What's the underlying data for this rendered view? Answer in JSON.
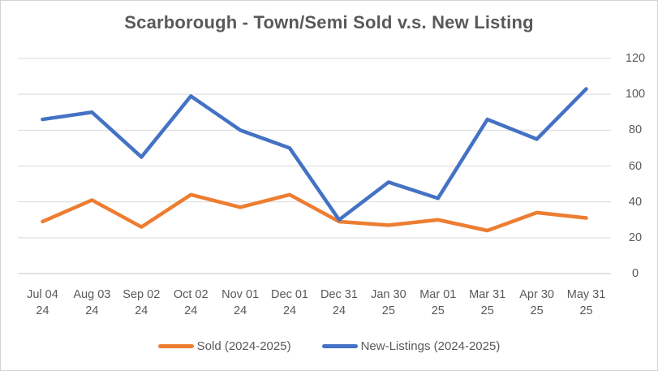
{
  "chart_data": {
    "type": "line",
    "title": "Scarborough - Town/Semi Sold v.s. New Listing",
    "xlabel": "",
    "ylabel": "",
    "categories": [
      "Jul 04 24",
      "Aug 03 24",
      "Sep 02 24",
      "Oct 02 24",
      "Nov 01 24",
      "Dec 01 24",
      "Dec 31 24",
      "Jan 30 25",
      "Mar 01 25",
      "Mar 31 25",
      "Apr 30 25",
      "May 31 25"
    ],
    "series": [
      {
        "name": "Sold (2024-2025)",
        "color": "#ED7D31",
        "values": [
          29,
          41,
          26,
          44,
          37,
          44,
          29,
          27,
          30,
          24,
          34,
          31
        ]
      },
      {
        "name": "New-Listings (2024-2025)",
        "color": "#4472C4",
        "values": [
          86,
          90,
          65,
          99,
          80,
          70,
          30,
          51,
          42,
          86,
          75,
          103
        ]
      }
    ],
    "ylim": [
      0,
      120
    ],
    "y_ticks": [
      0,
      20,
      40,
      60,
      80,
      100,
      120
    ],
    "y_axis_side": "right",
    "grid": true,
    "legend_position": "bottom"
  },
  "colors": {
    "gridline": "#D9D9D9",
    "axis_text": "#595959",
    "title_text": "#595959",
    "frame_border": "#D2D2D2",
    "background": "#FFFFFF"
  }
}
